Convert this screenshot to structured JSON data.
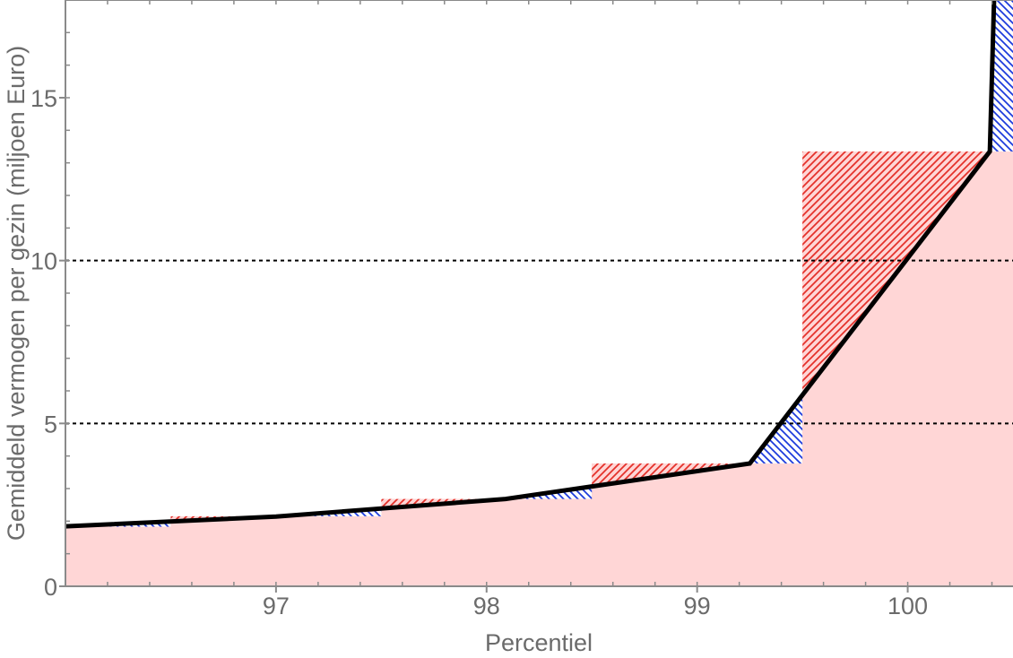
{
  "chart_data": {
    "type": "area",
    "title": "",
    "xlabel": "Percentiel",
    "ylabel": "Gemiddeld vermogen per gezin (miljoen Euro)",
    "xlim": [
      96,
      100.5
    ],
    "ylim": [
      0,
      18
    ],
    "xticks": [
      97,
      98,
      99,
      100
    ],
    "yticks": [
      0,
      5,
      10,
      15
    ],
    "x_minor_tick_step": 0.2,
    "y_minor_tick_step": 1,
    "grid": false,
    "legend": "none",
    "reference_lines": [
      5,
      10
    ],
    "steps": [
      {
        "x0": 96.0,
        "x1": 96.5,
        "value": 1.83
      },
      {
        "x0": 96.5,
        "x1": 97.5,
        "value": 2.15
      },
      {
        "x0": 97.5,
        "x1": 98.5,
        "value": 2.68
      },
      {
        "x0": 98.5,
        "x1": 99.5,
        "value": 3.77
      },
      {
        "x0": 99.5,
        "x1": 100.5,
        "value": 13.35
      }
    ],
    "line": {
      "x": [
        96.0,
        97.0,
        98.09,
        99.25,
        100.39,
        100.41
      ],
      "y": [
        1.84,
        2.14,
        2.68,
        3.77,
        13.35,
        18
      ]
    },
    "colors": {
      "step_fill": "#ffd6d6",
      "step_above_line_hatch": "#e4322b",
      "line_above_step_hatch": "#1e3cdc",
      "line": "#000000",
      "reference_line": "#000000",
      "axis": "#8a8a8a",
      "text": "#6b6b6b"
    }
  }
}
